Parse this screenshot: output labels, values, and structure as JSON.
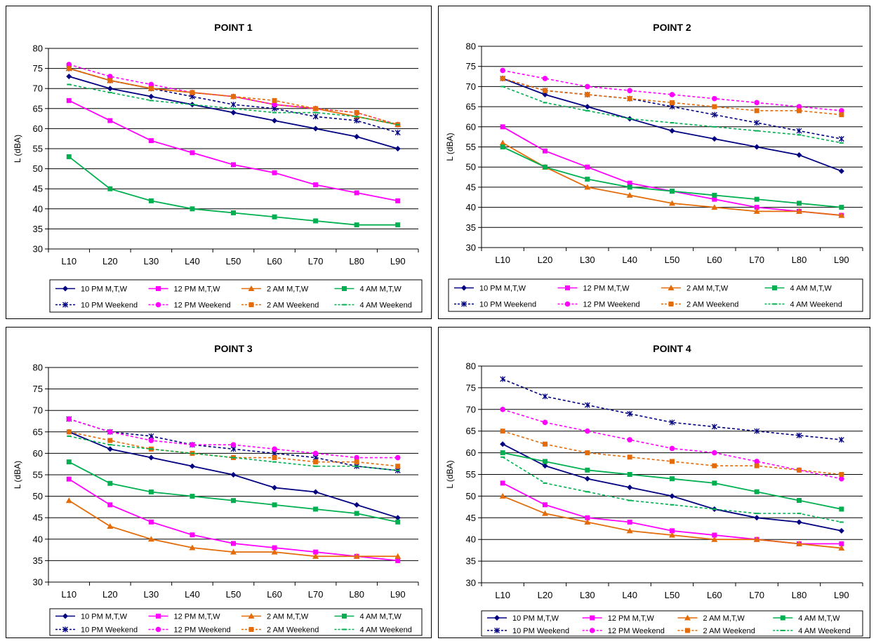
{
  "categories": [
    "L10",
    "L20",
    "L30",
    "L40",
    "L50",
    "L60",
    "L70",
    "L80",
    "L90"
  ],
  "ylim": [
    30,
    80
  ],
  "ystep": 5,
  "ylabel": "L (dBA)",
  "series_styles": [
    {
      "key": "pm10_mtw",
      "label": "10 PM  M,T,W",
      "color": "#000080",
      "dash": false,
      "marker": "diamond"
    },
    {
      "key": "pm12_mtw",
      "label": "12 PM  M,T,W",
      "color": "#ff00ff",
      "dash": false,
      "marker": "square"
    },
    {
      "key": "am2_mtw",
      "label": "2 AM  M,T,W",
      "color": "#e36c09",
      "dash": false,
      "marker": "triangle"
    },
    {
      "key": "am4_mtw",
      "label": "4 AM  M,T,W",
      "color": "#00b050",
      "dash": false,
      "marker": "square"
    },
    {
      "key": "pm10_we",
      "label": "10 PM Weekend",
      "color": "#000080",
      "dash": true,
      "marker": "star"
    },
    {
      "key": "pm12_we",
      "label": "12 PM Weekend",
      "color": "#ff00ff",
      "dash": true,
      "marker": "circle"
    },
    {
      "key": "am2_we",
      "label": "2 AM  Weekend",
      "color": "#e36c09",
      "dash": true,
      "marker": "square"
    },
    {
      "key": "am4_we",
      "label": "4 AM Weekend",
      "color": "#00b050",
      "dash": true,
      "marker": "dash"
    }
  ],
  "chart_data": [
    {
      "type": "line",
      "title": "POINT 1",
      "series": [
        {
          "name": "10 PM  M,T,W",
          "values": [
            73,
            70,
            68,
            66,
            64,
            62,
            60,
            58,
            55
          ]
        },
        {
          "name": "12 PM  M,T,W",
          "values": [
            67,
            62,
            57,
            54,
            51,
            49,
            46,
            44,
            42
          ]
        },
        {
          "name": "2 AM  M,T,W",
          "values": [
            75,
            72,
            70,
            69,
            68,
            66,
            65,
            63,
            61
          ]
        },
        {
          "name": "4 AM  M,T,W",
          "values": [
            53,
            45,
            42,
            40,
            39,
            38,
            37,
            36,
            36
          ]
        },
        {
          "name": "10 PM Weekend",
          "values": [
            75,
            72,
            70,
            68,
            66,
            65,
            63,
            62,
            59
          ]
        },
        {
          "name": "12 PM Weekend",
          "values": [
            76,
            73,
            71,
            69,
            68,
            66,
            65,
            64,
            61
          ]
        },
        {
          "name": "2 AM  Weekend",
          "values": [
            75,
            72,
            70,
            69,
            68,
            67,
            65,
            64,
            61
          ]
        },
        {
          "name": "4 AM Weekend",
          "values": [
            71,
            69,
            67,
            66,
            65,
            64,
            64,
            63,
            61
          ]
        }
      ]
    },
    {
      "type": "line",
      "title": "POINT 2",
      "series": [
        {
          "name": "10 PM  M,T,W",
          "values": [
            72,
            68,
            65,
            62,
            59,
            57,
            55,
            53,
            49
          ]
        },
        {
          "name": "12 PM  M,T,W",
          "values": [
            60,
            54,
            50,
            46,
            44,
            42,
            40,
            39,
            38
          ]
        },
        {
          "name": "2 AM  M,T,W",
          "values": [
            56,
            50,
            45,
            43,
            41,
            40,
            39,
            39,
            38
          ]
        },
        {
          "name": "4 AM  M,T,W",
          "values": [
            55,
            50,
            47,
            45,
            44,
            43,
            42,
            41,
            40
          ]
        },
        {
          "name": "10 PM Weekend",
          "values": [
            72,
            69,
            68,
            67,
            65,
            63,
            61,
            59,
            57
          ]
        },
        {
          "name": "12 PM Weekend",
          "values": [
            74,
            72,
            70,
            69,
            68,
            67,
            66,
            65,
            64
          ]
        },
        {
          "name": "2 AM  Weekend",
          "values": [
            72,
            69,
            68,
            67,
            66,
            65,
            64,
            64,
            63
          ]
        },
        {
          "name": "4 AM Weekend",
          "values": [
            70,
            66,
            64,
            62,
            61,
            60,
            59,
            58,
            56
          ]
        }
      ]
    },
    {
      "type": "line",
      "title": "POINT 3",
      "series": [
        {
          "name": "10 PM  M,T,W",
          "values": [
            65,
            61,
            59,
            57,
            55,
            52,
            51,
            48,
            45
          ]
        },
        {
          "name": "12 PM  M,T,W",
          "values": [
            54,
            48,
            44,
            41,
            39,
            38,
            37,
            36,
            35
          ]
        },
        {
          "name": "2 AM  M,T,W",
          "values": [
            49,
            43,
            40,
            38,
            37,
            37,
            36,
            36,
            36
          ]
        },
        {
          "name": "4 AM  M,T,W",
          "values": [
            58,
            53,
            51,
            50,
            49,
            48,
            47,
            46,
            44
          ]
        },
        {
          "name": "10 PM Weekend",
          "values": [
            68,
            65,
            64,
            62,
            61,
            60,
            59,
            57,
            56
          ]
        },
        {
          "name": "12 PM Weekend",
          "values": [
            68,
            65,
            63,
            62,
            62,
            61,
            60,
            59,
            59
          ]
        },
        {
          "name": "2 AM  Weekend",
          "values": [
            65,
            63,
            61,
            60,
            59,
            59,
            58,
            58,
            57
          ]
        },
        {
          "name": "4 AM Weekend",
          "values": [
            64,
            62,
            61,
            60,
            59,
            58,
            57,
            57,
            56
          ]
        }
      ]
    },
    {
      "type": "line",
      "title": "POINT 4",
      "series": [
        {
          "name": "10 PM  M,T,W",
          "values": [
            62,
            57,
            54,
            52,
            50,
            47,
            45,
            44,
            42
          ]
        },
        {
          "name": "12 PM  M,T,W",
          "values": [
            53,
            48,
            45,
            44,
            42,
            41,
            40,
            39,
            39
          ]
        },
        {
          "name": "2 AM  M,T,W",
          "values": [
            50,
            46,
            44,
            42,
            41,
            40,
            40,
            39,
            38
          ]
        },
        {
          "name": "4 AM  M,T,W",
          "values": [
            60,
            58,
            56,
            55,
            54,
            53,
            51,
            49,
            47
          ]
        },
        {
          "name": "10 PM Weekend",
          "values": [
            77,
            73,
            71,
            69,
            67,
            66,
            65,
            64,
            63
          ]
        },
        {
          "name": "12 PM Weekend",
          "values": [
            70,
            67,
            65,
            63,
            61,
            60,
            58,
            56,
            54
          ]
        },
        {
          "name": "2 AM  Weekend",
          "values": [
            65,
            62,
            60,
            59,
            58,
            57,
            57,
            56,
            55
          ]
        },
        {
          "name": "4 AM Weekend",
          "values": [
            59,
            53,
            51,
            49,
            48,
            47,
            46,
            46,
            44
          ]
        }
      ]
    }
  ]
}
